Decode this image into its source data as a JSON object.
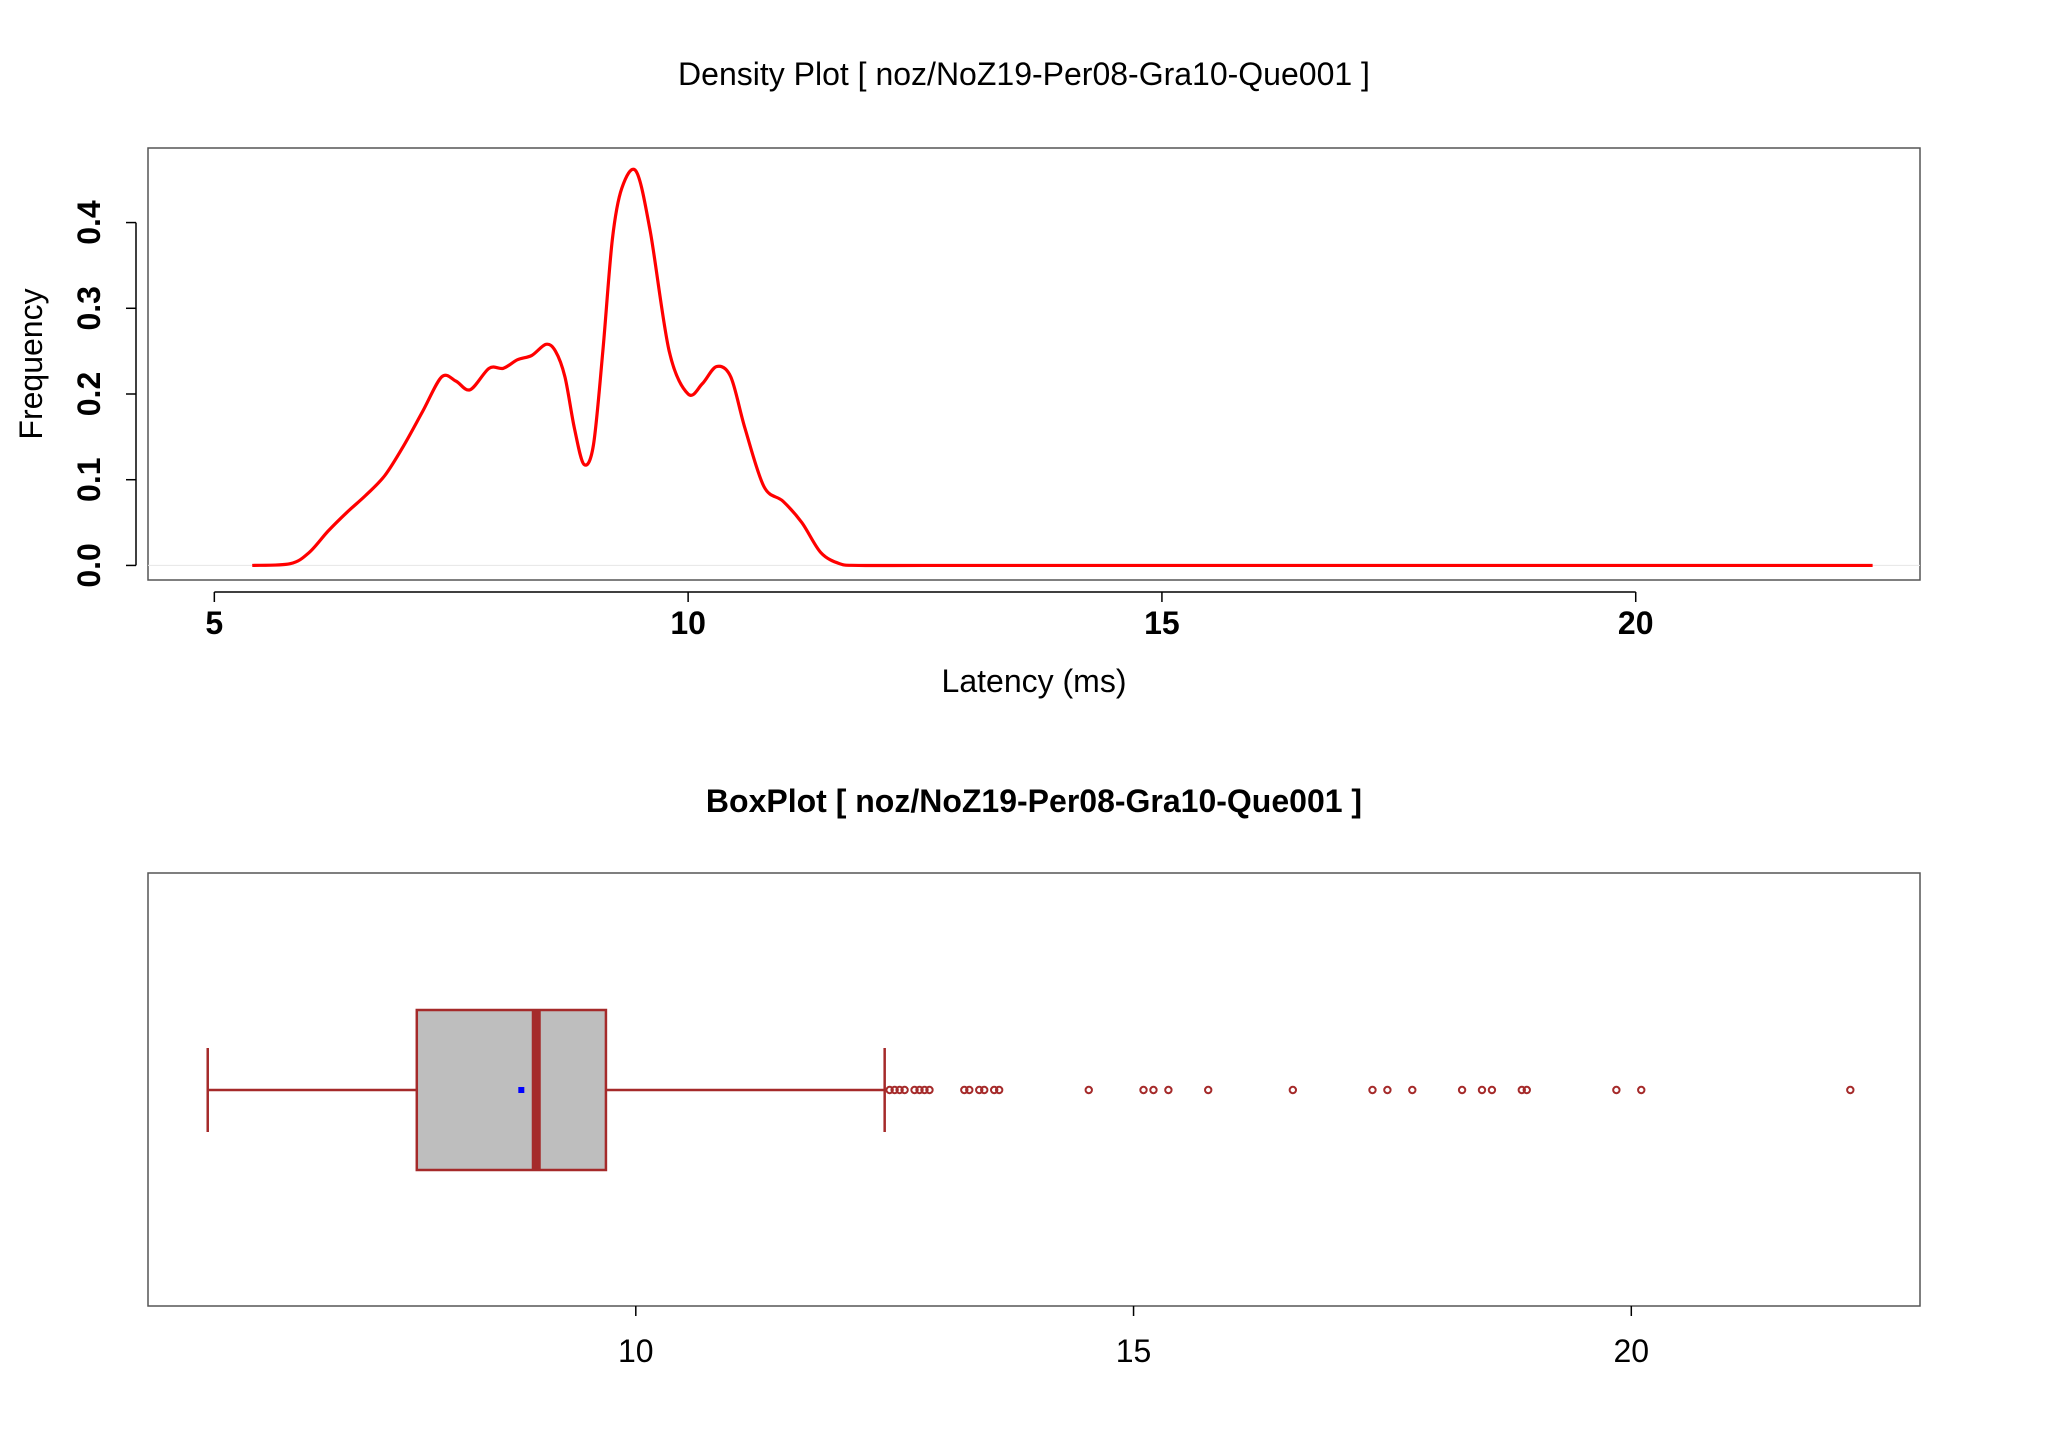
{
  "colors": {
    "density_line": "#ff0000",
    "box_border": "#a52a2a",
    "box_fill": "#bebebe",
    "mean_marker": "#0000ff",
    "frame": "#555555"
  },
  "chart_data": [
    {
      "type": "line",
      "title": "Density Plot [ noz/NoZ19-Per08-Gra10-Que001 ]",
      "xlabel": "Latency (ms)",
      "ylabel": "Frequency",
      "xlim": [
        4.3,
        23.0
      ],
      "ylim": [
        -0.017,
        0.487
      ],
      "xticks": [
        5,
        10,
        15,
        20
      ],
      "xtick_labels": [
        "5",
        "10",
        "15",
        "20"
      ],
      "yticks": [
        0.0,
        0.1,
        0.2,
        0.3,
        0.4
      ],
      "ytick_labels": [
        "0.0",
        "0.1",
        "0.2",
        "0.3",
        "0.4"
      ],
      "series": [
        {
          "x": [
            5.4,
            5.8,
            6.0,
            6.2,
            6.4,
            6.6,
            6.8,
            7.0,
            7.2,
            7.4,
            7.55,
            7.7,
            7.9,
            8.05,
            8.2,
            8.35,
            8.5,
            8.6,
            8.7,
            8.8,
            8.9,
            9.0,
            9.1,
            9.2,
            9.3,
            9.45,
            9.6,
            9.8,
            10.0,
            10.15,
            10.3,
            10.45,
            10.6,
            10.8,
            11.0,
            11.2,
            11.4,
            11.6,
            11.8,
            12.5,
            14.0,
            16.0,
            18.0,
            20.0,
            22.5
          ],
          "y": [
            0.0,
            0.002,
            0.015,
            0.04,
            0.062,
            0.082,
            0.105,
            0.14,
            0.18,
            0.22,
            0.215,
            0.205,
            0.23,
            0.23,
            0.24,
            0.245,
            0.258,
            0.25,
            0.22,
            0.16,
            0.118,
            0.14,
            0.25,
            0.38,
            0.44,
            0.46,
            0.39,
            0.25,
            0.2,
            0.212,
            0.232,
            0.22,
            0.16,
            0.092,
            0.075,
            0.05,
            0.015,
            0.002,
            0.0,
            0.0,
            0.0,
            0.0,
            0.0,
            0.0,
            0.0
          ]
        }
      ]
    },
    {
      "type": "box",
      "title": "BoxPlot [ noz/NoZ19-Per08-Gra10-Que001 ]",
      "xlim": [
        5.1,
        22.9
      ],
      "xticks": [
        10,
        15,
        20
      ],
      "xtick_labels": [
        "10",
        "15",
        "20"
      ],
      "box": {
        "whisker_low": 5.7,
        "q1": 7.8,
        "median": 9.0,
        "q3": 9.7,
        "whisker_high": 12.5,
        "mean": 8.85
      },
      "outliers": [
        12.55,
        12.6,
        12.65,
        12.7,
        12.8,
        12.85,
        12.9,
        12.95,
        13.3,
        13.35,
        13.45,
        13.5,
        13.6,
        13.65,
        14.55,
        15.1,
        15.2,
        15.35,
        15.75,
        16.6,
        17.4,
        17.55,
        17.8,
        18.3,
        18.5,
        18.6,
        18.9,
        18.95,
        19.85,
        20.1,
        22.2
      ]
    }
  ]
}
